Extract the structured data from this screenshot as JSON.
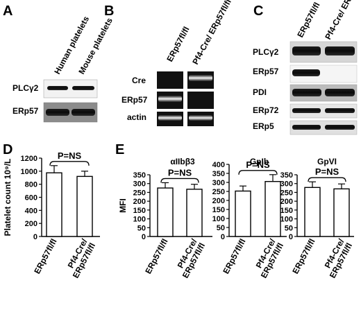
{
  "panels": {
    "A": {
      "letter": "A",
      "columns": [
        "Human platelets",
        "Mouse platelets"
      ],
      "rows": [
        "PLCγ2",
        "ERp57"
      ]
    },
    "B": {
      "letter": "B",
      "columns": [
        "ERp57fl/fl",
        "Pf4-Cre/ ERp57fl/fl"
      ],
      "rows": [
        "Cre",
        "ERp57",
        "actin"
      ]
    },
    "C": {
      "letter": "C",
      "columns": [
        "ERp57fl/fl",
        "Pf4-Cre/ ERp57fl/fl"
      ],
      "rows": [
        "PLCγ2",
        "ERp57",
        "PDI",
        "ERp72",
        "ERp5"
      ]
    },
    "D": {
      "letter": "D",
      "significance": "P=NS"
    },
    "E": {
      "letter": "E"
    }
  },
  "chart_data": [
    {
      "type": "bar",
      "panel": "D",
      "categories": [
        "ERp57fl/fl",
        "Pf4-Cre/ ERp57fl/fl"
      ],
      "values": [
        975,
        920
      ],
      "errors": [
        110,
        80
      ],
      "ylabel": "Platelet count 10⁹/L",
      "ylim": [
        0,
        1200
      ],
      "yticks": [
        0,
        200,
        400,
        600,
        800,
        1000,
        1200
      ]
    },
    {
      "type": "bar",
      "panel": "E",
      "title": "αIIbβ3",
      "significance": "P=NS",
      "categories": [
        "ERp57fl/fl",
        "Pf4-Cre/ ERp57fl/fl"
      ],
      "values": [
        275,
        268
      ],
      "errors": [
        30,
        28
      ],
      "ylabel": "MFI",
      "ylim": [
        0,
        350
      ],
      "yticks": [
        0,
        50,
        100,
        150,
        200,
        250,
        300,
        350
      ]
    },
    {
      "type": "bar",
      "panel": "E",
      "title": "GpIb",
      "significance": "P=NS",
      "categories": [
        "ERp57fl/fl",
        "Pf4-Cre/ ERp57fl/fl"
      ],
      "values": [
        252,
        305
      ],
      "errors": [
        28,
        38
      ],
      "ylabel": "",
      "ylim": [
        0,
        400
      ],
      "yticks": [
        0,
        50,
        100,
        150,
        200,
        250,
        300,
        350,
        400
      ]
    },
    {
      "type": "bar",
      "panel": "E",
      "title": "GpVI",
      "significance": "P=NS",
      "categories": [
        "ERp57fl/fl",
        "Pf4-Cre/ ERp57fl/fl"
      ],
      "values": [
        278,
        270
      ],
      "errors": [
        32,
        28
      ],
      "ylabel": "",
      "ylim": [
        0,
        350
      ],
      "yticks": [
        0,
        50,
        100,
        150,
        200,
        250,
        300,
        350
      ]
    }
  ]
}
